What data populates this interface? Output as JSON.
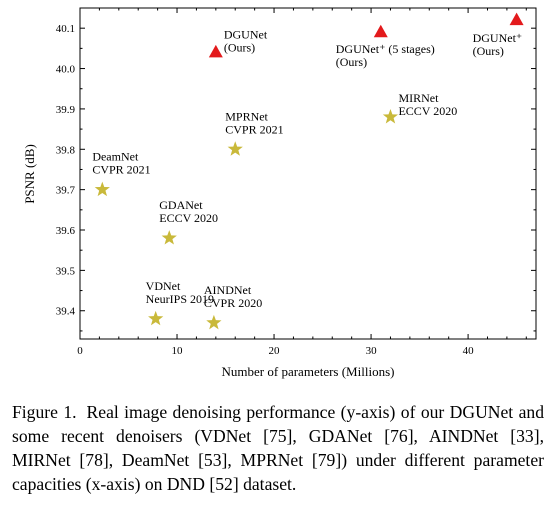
{
  "chart_data": {
    "type": "scatter",
    "xlabel": "Number of parameters (Millions)",
    "ylabel": "PSNR (dB)",
    "xlim": [
      0,
      47
    ],
    "ylim": [
      39.33,
      40.15
    ],
    "xticks": [
      "0",
      "10",
      "20",
      "30",
      "40"
    ],
    "xtick_values": [
      0,
      10,
      20,
      30,
      40
    ],
    "yticks": [
      "39.4",
      "39.5",
      "39.6",
      "39.7",
      "39.8",
      "39.9",
      "40.0",
      "40.1"
    ],
    "ytick_values": [
      39.4,
      39.5,
      39.6,
      39.7,
      39.8,
      39.9,
      40.0,
      40.1
    ],
    "grid": false,
    "marker_colors": {
      "triangle": "#e31a1c",
      "star": "#c9b93a"
    },
    "points": [
      {
        "x": 2.3,
        "y": 39.7,
        "marker": "star",
        "label": [
          "DeamNet",
          "CVPR 2021"
        ],
        "label_pos": "above-left"
      },
      {
        "x": 9.2,
        "y": 39.58,
        "marker": "star",
        "label": [
          "GDANet",
          "ECCV 2020"
        ],
        "label_pos": "above-center"
      },
      {
        "x": 7.8,
        "y": 39.38,
        "marker": "star",
        "label": [
          "VDNet",
          "NeurIPS 2019"
        ],
        "label_pos": "above-left"
      },
      {
        "x": 13.8,
        "y": 39.37,
        "marker": "star",
        "label": [
          "AINDNet",
          "CVPR 2020"
        ],
        "label_pos": "above-center"
      },
      {
        "x": 16.0,
        "y": 39.8,
        "marker": "star",
        "label": [
          "MPRNet",
          "CVPR 2021"
        ],
        "label_pos": "above-center"
      },
      {
        "x": 32.0,
        "y": 39.88,
        "marker": "star",
        "label": [
          "MIRNet",
          "ECCV 2020"
        ],
        "label_pos": "above-right"
      },
      {
        "x": 14.0,
        "y": 40.04,
        "marker": "triangle",
        "label": [
          "DGUNet",
          "(Ours)"
        ],
        "label_pos": "above-right"
      },
      {
        "x": 31.0,
        "y": 40.09,
        "marker": "triangle",
        "label": [
          "DGUNet⁺ (5 stages)",
          "(Ours)"
        ],
        "label_pos": "below-center"
      },
      {
        "x": 45.0,
        "y": 40.12,
        "marker": "triangle",
        "label": [
          "DGUNet⁺",
          "(Ours)"
        ],
        "label_pos": "below-center"
      }
    ]
  },
  "caption": {
    "label": "Figure 1.",
    "text": "Real image denoising performance (y-axis) of our DGUNet and some recent denoisers (VDNet [75], GDANet [76], AINDNet [33], MIRNet [78], DeamNet [53], MPRNet [79]) under different parameter capacities (x-axis) on DND [52] dataset."
  }
}
